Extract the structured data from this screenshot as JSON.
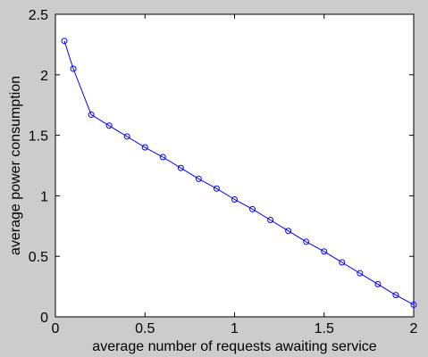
{
  "chart_data": {
    "type": "line",
    "title": "",
    "xlabel": "average number of requests awaiting service",
    "ylabel": "average power consumption",
    "xlim": [
      0,
      2
    ],
    "ylim": [
      0,
      2.5
    ],
    "xticks": [
      0,
      0.5,
      1,
      1.5,
      2
    ],
    "xtick_labels": [
      "0",
      "0.5",
      "1",
      "1.5",
      "2"
    ],
    "yticks": [
      0,
      0.5,
      1,
      1.5,
      2,
      2.5
    ],
    "ytick_labels": [
      "0",
      "0.5",
      "1",
      "1.5",
      "2",
      "2.5"
    ],
    "grid": false,
    "legend": "none",
    "series": [
      {
        "color": "#0000ff",
        "marker": "circle",
        "x": [
          0.05,
          0.1,
          0.2,
          0.3,
          0.4,
          0.5,
          0.6,
          0.7,
          0.8,
          0.9,
          1.0,
          1.1,
          1.2,
          1.3,
          1.4,
          1.5,
          1.6,
          1.7,
          1.8,
          1.9,
          2.0
        ],
        "y": [
          2.28,
          2.05,
          1.67,
          1.58,
          1.49,
          1.4,
          1.32,
          1.23,
          1.14,
          1.06,
          0.97,
          0.89,
          0.8,
          0.71,
          0.62,
          0.54,
          0.45,
          0.36,
          0.27,
          0.18,
          0.1
        ]
      }
    ]
  },
  "colors": {
    "figure_background": "#cccccc",
    "plot_background": "#ffffff",
    "axes": "#000000"
  }
}
